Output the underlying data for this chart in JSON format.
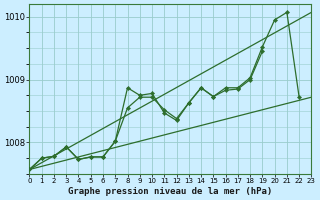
{
  "xlabel": "Graphe pression niveau de la mer (hPa)",
  "background_color": "#cceeff",
  "line_color": "#2d6e2d",
  "grid_color": "#99cccc",
  "ylim": [
    1007.5,
    1010.2
  ],
  "xlim": [
    0,
    23
  ],
  "yticks": [
    1008,
    1009,
    1010
  ],
  "xticks": [
    0,
    1,
    2,
    3,
    4,
    5,
    6,
    7,
    8,
    9,
    10,
    11,
    12,
    13,
    14,
    15,
    16,
    17,
    18,
    19,
    20,
    21,
    22,
    23
  ],
  "series": [
    {
      "x": [
        0,
        1,
        2,
        3,
        4,
        5,
        6,
        7,
        8,
        9,
        10,
        11,
        12,
        13,
        14,
        15,
        16,
        17,
        18,
        19,
        20,
        21,
        22,
        23
      ],
      "y": [
        1007.57,
        1007.75,
        1007.78,
        1007.93,
        1007.73,
        1007.77,
        1007.77,
        1008.02,
        1008.87,
        1008.75,
        1008.78,
        1008.47,
        1008.35,
        1008.63,
        1008.87,
        1008.73,
        1008.87,
        1008.87,
        1009.03,
        1009.52,
        1009.95,
        1010.07,
        1008.72,
        null
      ],
      "marker": true
    },
    {
      "x": [
        0,
        1,
        2,
        3,
        4,
        5,
        6,
        7,
        8,
        9,
        10,
        11,
        12,
        13,
        14,
        15,
        16,
        17,
        18,
        19,
        20,
        21,
        22,
        23
      ],
      "y": [
        1007.57,
        1007.75,
        1007.78,
        1007.93,
        1007.73,
        1007.77,
        1007.77,
        1008.02,
        1008.55,
        1008.72,
        1008.72,
        1008.52,
        1008.38,
        1008.63,
        1008.87,
        1008.73,
        1008.83,
        1008.85,
        1009.0,
        1009.45,
        null,
        null,
        null,
        null
      ],
      "marker": true
    },
    {
      "x": [
        0,
        23
      ],
      "y": [
        1007.57,
        1010.07
      ],
      "marker": false
    },
    {
      "x": [
        0,
        23
      ],
      "y": [
        1007.57,
        1008.72
      ],
      "marker": false
    }
  ]
}
